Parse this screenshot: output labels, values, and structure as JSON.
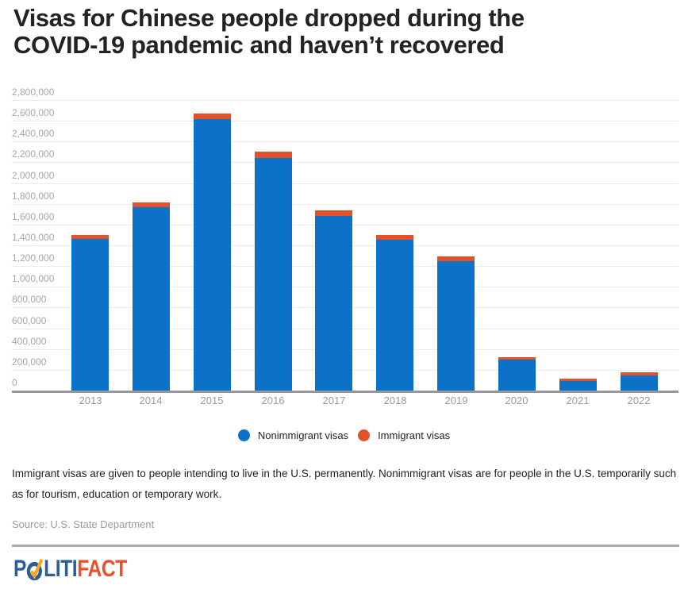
{
  "title": {
    "line1": "Visas for Chinese people dropped during the",
    "line2": "COVID-19 pandemic and haven’t recovered"
  },
  "chart_data": {
    "type": "bar",
    "stacked": true,
    "categories": [
      "2013",
      "2014",
      "2015",
      "2016",
      "2017",
      "2018",
      "2019",
      "2020",
      "2021",
      "2022"
    ],
    "series": [
      {
        "name": "Nonimmigrant visas",
        "color": "#0b72c7",
        "values": [
          1460000,
          1767000,
          2618000,
          2245000,
          1685000,
          1450000,
          1245000,
          300000,
          94000,
          148000
        ]
      },
      {
        "name": "Immigrant visas",
        "color": "#e2512a",
        "values": [
          41000,
          46000,
          57000,
          58000,
          50000,
          44000,
          44000,
          25000,
          23000,
          28000
        ]
      }
    ],
    "title": "Visas for Chinese people dropped during the COVID-19 pandemic and haven’t recovered",
    "xlabel": "",
    "ylabel": "",
    "ylim": [
      0,
      2800000
    ],
    "ytick_step": 200000,
    "grid": true,
    "legend_position": "bottom"
  },
  "footnote": "Immigrant visas are given to people intending to live in the U.S. permanently. Nonimmigrant visas are for people in the U.S. temporarily such as for tourism, education or temporary work.",
  "source": "Source: U.S. State Department",
  "logo": {
    "part_p": "P",
    "part_liti": "LITI",
    "part_fact": "FACT",
    "blue": "#2b5e98",
    "red": "#e8502e",
    "check_yellow": "#f6a821"
  },
  "colors": {
    "bar_blue": "#0b72c7",
    "bar_red": "#e2512a",
    "gridline": "#ebebeb",
    "axis": "#97979b",
    "tick_text": "#a7a7a7"
  }
}
